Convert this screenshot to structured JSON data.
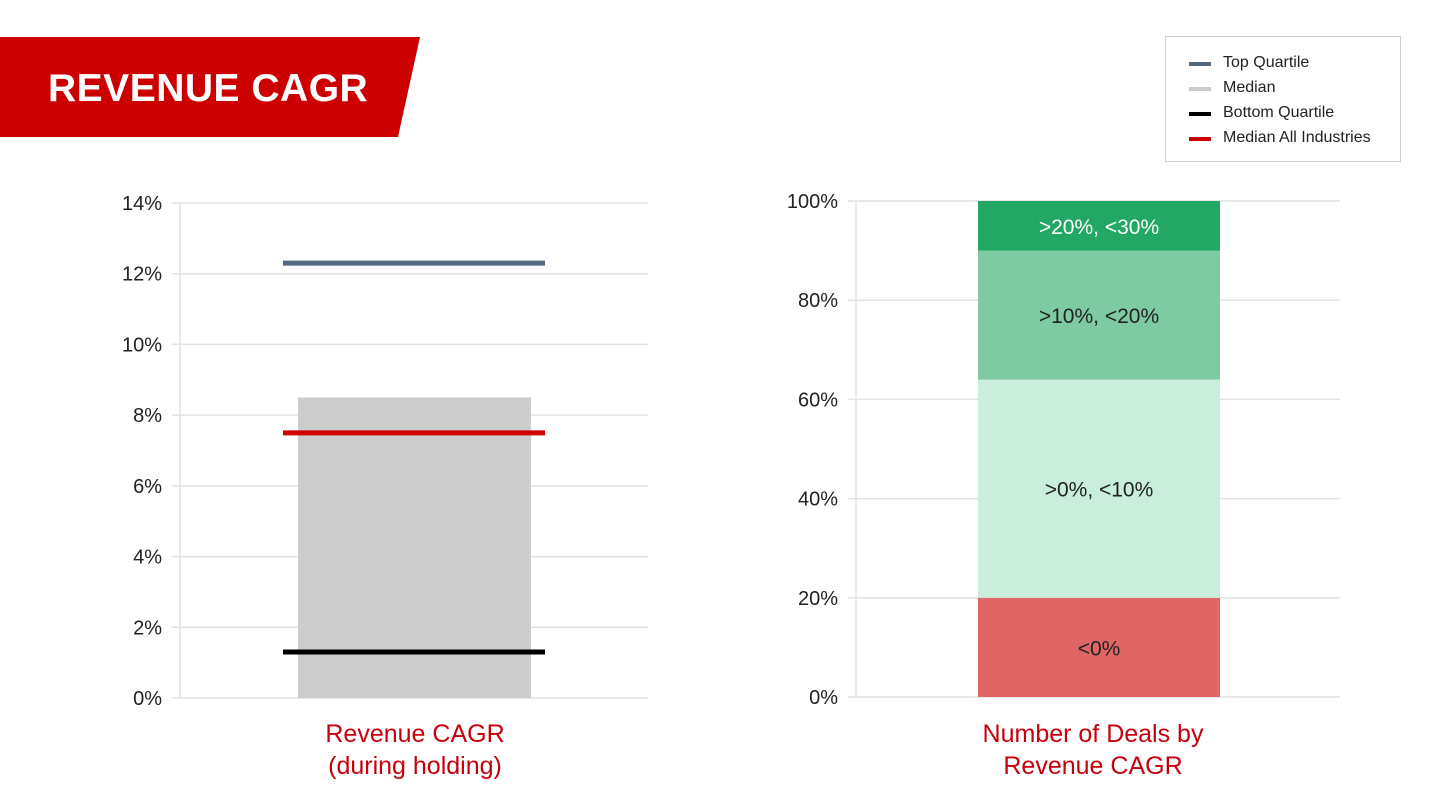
{
  "header": {
    "title": "REVENUE CAGR",
    "color": "#cc0000"
  },
  "legend": {
    "items": [
      {
        "label": "Top Quartile",
        "color": "#53697f"
      },
      {
        "label": "Median",
        "color": "#cccccc"
      },
      {
        "label": "Bottom Quartile",
        "color": "#000000"
      },
      {
        "label": "Median All Industries",
        "color": "#cc0000"
      }
    ]
  },
  "chart_data": [
    {
      "type": "bar",
      "title": "Revenue CAGR\n(during holding)",
      "ylim": [
        0,
        14
      ],
      "yticks": [
        "0%",
        "2%",
        "4%",
        "6%",
        "8%",
        "10%",
        "12%",
        "14%"
      ],
      "grid": true,
      "bar": {
        "name": "Median",
        "value": 8.5,
        "color": "#cccccc"
      },
      "lines": [
        {
          "name": "Top Quartile",
          "value": 12.3,
          "color": "#53697f"
        },
        {
          "name": "Median All Industries",
          "value": 7.5,
          "color": "#cc0000"
        },
        {
          "name": "Bottom Quartile",
          "value": 1.3,
          "color": "#000000"
        }
      ]
    },
    {
      "type": "bar",
      "stacked": true,
      "title": "Number of Deals by\nRevenue CAGR",
      "ylim": [
        0,
        100
      ],
      "yticks": [
        "0%",
        "20%",
        "40%",
        "60%",
        "80%",
        "100%"
      ],
      "grid": true,
      "segments": [
        {
          "name": "<0%",
          "value": 20,
          "color": "#e06666",
          "text_color": "#222222"
        },
        {
          "name": ">0%, <10%",
          "value": 44,
          "color": "#c9efdc",
          "text_color": "#222222"
        },
        {
          "name": ">10%, <20%",
          "value": 26,
          "color": "#7ecaa3",
          "text_color": "#222222"
        },
        {
          "name": ">20%, <30%",
          "value": 10,
          "color": "#22a864",
          "text_color": "#ffffff"
        }
      ]
    }
  ]
}
